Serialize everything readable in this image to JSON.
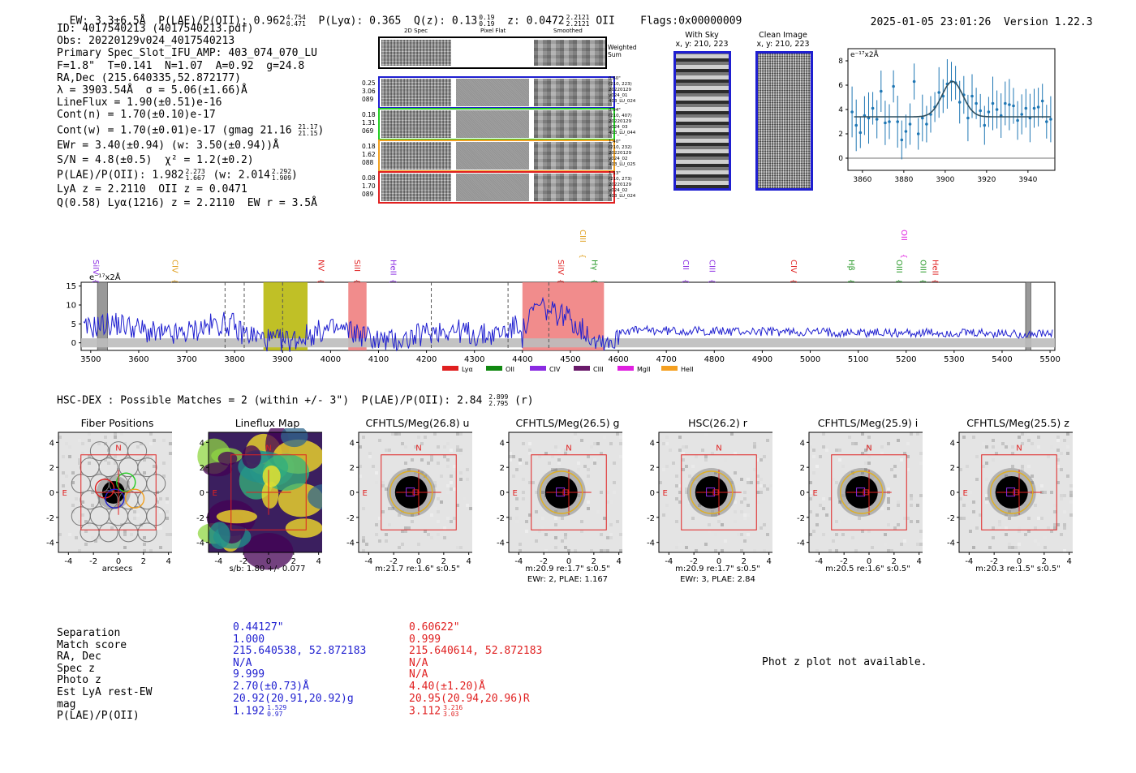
{
  "header": {
    "ew": "EW: 3.3±6.5Å",
    "plae_label": "P(LAE)/P(OII):",
    "plae_val": "0.962",
    "plae_hi": "4.754",
    "plae_lo": "0.471",
    "plya": "P(Lyα): 0.365",
    "qz_label": "Q(z): 0.13",
    "qz_hi": "0.19",
    "qz_lo": "0.19",
    "z_label": "z: 0.0472",
    "z_hi": "2.2121",
    "z_lo": "2.2121",
    "z_line": "OII",
    "flags": "Flags:0x00000009",
    "datetime": "2025-01-05 23:01:26",
    "version": "Version 1.22.3"
  },
  "info": {
    "id": "ID: 4017540213 (4017540213.pdf)",
    "obs": "Obs: 20220129v024_4017540213",
    "primary": "Primary Spec_Slot_IFU_AMP: 403_074_070_LU",
    "params": "F=1.8\"  T=0.141  N=1.07  A=0.92  g=24.8",
    "radec": "RA,Dec (215.640335,52.872177)",
    "lambda": "λ = 3903.54Å  σ = 5.06(±1.66)Å",
    "lineflux": "LineFlux = 1.90(±0.51)e-16",
    "contn": "Cont(n) = 1.70(±0.10)e-17",
    "contw": "Cont(w) = 1.70(±0.01)e-17 (gmag 21.16",
    "contw_hi": "21.17",
    "contw_lo": "21.15",
    "contw_end": ")",
    "ewr": "EWr = 3.40(±0.94) (w: 3.50(±0.94))Å",
    "sn": "S/N = 4.8(±0.5)  χ² = 1.2(±0.2)",
    "plae": "P(LAE)/P(OII): 1.982",
    "plae_hi": "2.273",
    "plae_lo": "1.667",
    "plae_w": "(w: 2.014",
    "plae_w_hi": "2.292",
    "plae_w_lo": "1.909",
    "plae_end": ")",
    "lyaz": "LyA z = 2.2110  OII z = 0.0471",
    "q": "Q(0.58) Lyα(1216) z = 2.2110  EW r = 3.5Å"
  },
  "cutouts": {
    "col_2d": "2D Spec",
    "col_flat": "Pixel Flat",
    "col_smooth": "Smoothed",
    "weighted": "Weighted",
    "sum": "Sum",
    "rows": [
      {
        "color": "#1f1fd0",
        "l1": "0.25",
        "l2": "3.06",
        "l3": "089",
        "r1": "0.60\"",
        "r2": "(210, 223)",
        "r3": "20220129",
        "r4": "v024_01",
        "r5": "403_LU_024"
      },
      {
        "color": "#22cc22",
        "l1": "0.18",
        "l2": "1.31",
        "l3": "069",
        "r1": "0.94\"",
        "r2": "(210, 407)",
        "r3": "20220129",
        "r4": "v024_03",
        "r5": "403_LU_044"
      },
      {
        "color": "#f0a020",
        "l1": "0.18",
        "l2": "1.62",
        "l3": "088",
        "r1": "1.40\"",
        "r2": "(210, 232)",
        "r3": "20220129",
        "r4": "v024_02",
        "r5": "403_LU_025"
      },
      {
        "color": "#e02020",
        "l1": "0.08",
        "l2": "1.70",
        "l3": "089",
        "r1": "1.13\"",
        "r2": "(210, 273)",
        "r3": "20220129",
        "r4": "v024_02",
        "r5": "403_LU_024"
      }
    ]
  },
  "sky": {
    "with_sky": "With Sky",
    "with_sky_xy": "x, y: 210, 223",
    "clean": "Clean Image",
    "clean_xy": "x, y: 210, 223"
  },
  "zoom_plot": {
    "ylabel": "e⁻¹⁷x2Å",
    "xticks": [
      "3860",
      "3880",
      "3900",
      "3920",
      "3940"
    ],
    "yticks": [
      "0",
      "2",
      "4",
      "6",
      "8"
    ],
    "xlim": [
      3853,
      3953
    ],
    "ylim": [
      -1,
      9
    ],
    "gauss": {
      "center": 3903.5,
      "sigma": 5.06,
      "amp": 2.9,
      "base": 3.4
    },
    "points": [
      [
        3855,
        3.8
      ],
      [
        3857,
        2.7
      ],
      [
        3859,
        2.1
      ],
      [
        3861,
        3.5
      ],
      [
        3863,
        3.3
      ],
      [
        3865,
        4.1
      ],
      [
        3867,
        3.2
      ],
      [
        3869,
        5.5
      ],
      [
        3871,
        2.9
      ],
      [
        3873,
        3.0
      ],
      [
        3875,
        5.9
      ],
      [
        3877,
        3.0
      ],
      [
        3879,
        1.5
      ],
      [
        3881,
        2.2
      ],
      [
        3883,
        2.8
      ],
      [
        3885,
        6.3
      ],
      [
        3887,
        2.0
      ],
      [
        3889,
        3.3
      ],
      [
        3891,
        2.8
      ],
      [
        3893,
        3.6
      ],
      [
        3895,
        4.2
      ],
      [
        3897,
        5.4
      ],
      [
        3899,
        5.1
      ],
      [
        3901,
        6.1
      ],
      [
        3903,
        6.3
      ],
      [
        3905,
        6.2
      ],
      [
        3907,
        4.6
      ],
      [
        3909,
        5.2
      ],
      [
        3911,
        3.3
      ],
      [
        3913,
        5.1
      ],
      [
        3915,
        4.5
      ],
      [
        3917,
        3.9
      ],
      [
        3919,
        2.7
      ],
      [
        3921,
        3.8
      ],
      [
        3923,
        4.5
      ],
      [
        3925,
        4.0
      ],
      [
        3927,
        3.5
      ],
      [
        3929,
        4.5
      ],
      [
        3931,
        4.4
      ],
      [
        3933,
        4.3
      ],
      [
        3935,
        3.1
      ],
      [
        3937,
        3.6
      ],
      [
        3939,
        4.1
      ],
      [
        3941,
        3.3
      ],
      [
        3943,
        4.1
      ],
      [
        3945,
        4.2
      ],
      [
        3947,
        4.7
      ],
      [
        3949,
        3.0
      ],
      [
        3951,
        3.2
      ]
    ]
  },
  "spectrum": {
    "ylabel": "e⁻¹⁷x2Å",
    "xticks": [
      "3500",
      "3600",
      "3700",
      "3800",
      "3900",
      "4000",
      "4100",
      "4200",
      "4300",
      "4400",
      "4500",
      "4600",
      "4700",
      "4800",
      "4900",
      "5000",
      "5100",
      "5200",
      "5300",
      "5400",
      "5500"
    ],
    "yticks": [
      "0",
      "5",
      "10",
      "15"
    ],
    "xlim": [
      3480,
      5510
    ],
    "ylim": [
      -2,
      16
    ],
    "lines": [
      {
        "label": "SiIV",
        "wl": 3505,
        "color": "#8a2be2",
        "row": 0
      },
      {
        "label": "CIV",
        "wl": 3670,
        "color": "#e0a020",
        "row": 0
      },
      {
        "label": "NV",
        "wl": 3975,
        "color": "#e02020",
        "row": 0
      },
      {
        "label": "SiII",
        "wl": 4050,
        "color": "#e02020",
        "row": 0
      },
      {
        "label": "HeII",
        "wl": 4125,
        "color": "#8a2be2",
        "row": 0
      },
      {
        "label": "SiIV",
        "wl": 4475,
        "color": "#e02020",
        "row": 0
      },
      {
        "label": "CIII",
        "wl": 4520,
        "color": "#e0a020",
        "row": 1
      },
      {
        "label": "Hγ",
        "wl": 4545,
        "color": "#2a9a2a",
        "row": 0
      },
      {
        "label": "CII",
        "wl": 4735,
        "color": "#8a2be2",
        "row": 0
      },
      {
        "label": "CIII",
        "wl": 4790,
        "color": "#8a2be2",
        "row": 0
      },
      {
        "label": "CIV",
        "wl": 4960,
        "color": "#e02020",
        "row": 0
      },
      {
        "label": "Hβ",
        "wl": 5080,
        "color": "#2a9a2a",
        "row": 0
      },
      {
        "label": "OII",
        "wl": 5190,
        "color": "#e020e0",
        "row": 1
      },
      {
        "label": "OIII",
        "wl": 5180,
        "color": "#2a9a2a",
        "row": 0
      },
      {
        "label": "OIII",
        "wl": 5230,
        "color": "#2a9a2a",
        "row": 0
      },
      {
        "label": "HeII",
        "wl": 5255,
        "color": "#e02020",
        "row": 0
      }
    ],
    "legend": [
      {
        "label": "Lyα",
        "color": "#e02020"
      },
      {
        "label": "OII",
        "color": "#118811"
      },
      {
        "label": "CIV",
        "color": "#8a2be2"
      },
      {
        "label": "CIII",
        "color": "#6a1a6a"
      },
      {
        "label": "MgII",
        "color": "#e020e0"
      },
      {
        "label": "HeII",
        "color": "#f5a020"
      }
    ]
  },
  "hsc": {
    "title": "HSC-DEX : Possible Matches = 2 (within +/- 3\")  P(LAE)/P(OII): 2.84",
    "hi": "2.899",
    "lo": "2.795",
    "band": "(r)"
  },
  "stamps": [
    {
      "title": "Fiber Positions",
      "caption1": "arcsecs",
      "caption2": ""
    },
    {
      "title": "Lineflux Map",
      "caption1": "s/b: 1.80 +/- 0.077",
      "caption2": ""
    },
    {
      "title": "CFHTLS/Meg(26.8) u",
      "caption1": "m:21.7  re:1.6\"  s:0.5\"",
      "caption2": ""
    },
    {
      "title": "CFHTLS/Meg(26.5) g",
      "caption1": "m:20.9  re:1.7\"  s:0.5\"",
      "caption2": "EWr: 2, PLAE: 1.167"
    },
    {
      "title": "HSC(26.2) r",
      "caption1": "m:20.9  re:1.7\"  s:0.5\"",
      "caption2": "EWr: 3, PLAE: 2.84"
    },
    {
      "title": "CFHTLS/Meg(25.9) i",
      "caption1": "m:20.5  re:1.6\"  s:0.5\"",
      "caption2": ""
    },
    {
      "title": "CFHTLS/Meg(25.5) z",
      "caption1": "m:20.3  re:1.5\"  s:0.5\"",
      "caption2": ""
    }
  ],
  "stamp_axis": {
    "ticks": [
      "-4",
      "-2",
      "0",
      "2",
      "4"
    ],
    "north": "N",
    "east": "E"
  },
  "matches": {
    "labels": [
      "Separation",
      "Match score",
      "RA, Dec",
      "Spec z",
      "Photo z",
      "Est LyA rest-EW",
      "mag",
      "P(LAE)/P(OII)"
    ],
    "m1": {
      "color": "#1f1fd0",
      "values": [
        "0.44127\"",
        "1.000",
        "215.640538, 52.872183",
        "N/A",
        "9.999",
        "2.70(±0.73)Å",
        "20.92(20.91,20.92)g",
        "1.192"
      ],
      "p_hi": "1.529",
      "p_lo": "0.97"
    },
    "m2": {
      "color": "#e02020",
      "values": [
        "0.60622\"",
        "0.999",
        "215.640614, 52.872183",
        "N/A",
        "N/A",
        "4.40(±1.20)Å",
        "20.95(20.94,20.96)R",
        "3.112"
      ],
      "p_hi": "3.216",
      "p_lo": "3.03"
    },
    "photz_msg": "Phot z plot not available."
  }
}
